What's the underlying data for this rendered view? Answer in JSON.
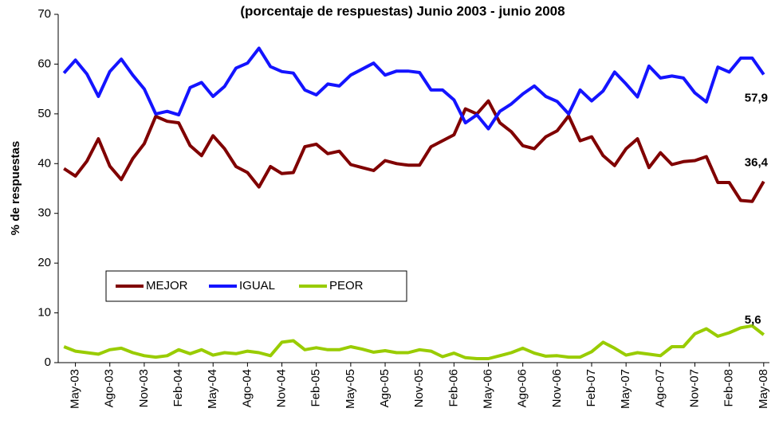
{
  "chart_data": {
    "type": "line",
    "title": "(porcentaje de respuestas)   Junio 2003 - junio 2008",
    "y_label": "% de respuestas",
    "categories": [
      null,
      "May-03",
      null,
      null,
      "Ago-03",
      null,
      null,
      "Nov-03",
      null,
      null,
      "Feb-04",
      null,
      null,
      "May-04",
      null,
      null,
      "Ago-04",
      null,
      null,
      "Nov-04",
      null,
      null,
      "Feb-05",
      null,
      null,
      "May-05",
      null,
      null,
      "Ago-05",
      null,
      null,
      "Nov-05",
      null,
      null,
      "Feb-06",
      null,
      null,
      "May-06",
      null,
      null,
      "Ago-06",
      null,
      null,
      "Nov-06",
      null,
      null,
      "Feb-07",
      null,
      null,
      "May-07",
      null,
      null,
      "Ago-07",
      null,
      null,
      "Nov-07",
      null,
      null,
      "Feb-08",
      null,
      null,
      "May-08"
    ],
    "series": [
      {
        "name": "MEJOR",
        "color": "#800000",
        "end_label": "36,4",
        "values": [
          39,
          37.5,
          40.5,
          45,
          39.5,
          36.8,
          41,
          44,
          49.5,
          48.5,
          48.2,
          43.6,
          41.6,
          45.6,
          43,
          39.4,
          38.2,
          35.3,
          39.4,
          38,
          38.2,
          43.4,
          43.9,
          42,
          42.5,
          39.8,
          39.2,
          38.6,
          40.6,
          40,
          39.7,
          39.7,
          43.4,
          44.6,
          45.8,
          51,
          50,
          52.6,
          48.2,
          46.4,
          43.6,
          43,
          45.4,
          46.6,
          49.6,
          44.6,
          45.4,
          41.6,
          39.6,
          43,
          45,
          39.2,
          42.2,
          39.8,
          40.4,
          40.6,
          41.4,
          36.2,
          36.2,
          32.6,
          32.4,
          36.4
        ]
      },
      {
        "name": "IGUAL",
        "color": "#1414ff",
        "end_label": "57,9",
        "values": [
          58.2,
          60.8,
          58,
          53.5,
          58.5,
          61,
          57.8,
          55,
          50,
          50.5,
          49.8,
          55.3,
          56.3,
          53.5,
          55.5,
          59.2,
          60.2,
          63.2,
          59.5,
          58.5,
          58.2,
          54.8,
          53.8,
          56,
          55.6,
          57.8,
          59,
          60.2,
          57.8,
          58.6,
          58.6,
          58.3,
          54.8,
          54.8,
          52.8,
          48.2,
          49.8,
          47,
          50.5,
          52,
          54,
          55.6,
          53.5,
          52.5,
          50,
          54.8,
          52.6,
          54.6,
          58.4,
          56,
          53.4,
          59.6,
          57.2,
          57.6,
          57.2,
          54.2,
          52.4,
          59.4,
          58.4,
          61.2,
          61.2,
          57.9
        ]
      },
      {
        "name": "PEOR",
        "color": "#99cc00",
        "end_label": "5,6",
        "values": [
          3.2,
          2.3,
          2,
          1.7,
          2.6,
          2.9,
          2,
          1.4,
          1.1,
          1.4,
          2.6,
          1.8,
          2.6,
          1.5,
          2,
          1.8,
          2.3,
          2,
          1.4,
          4.1,
          4.4,
          2.6,
          3,
          2.6,
          2.6,
          3.2,
          2.7,
          2.1,
          2.4,
          2,
          2,
          2.6,
          2.3,
          1.2,
          1.9,
          1,
          0.8,
          0.8,
          1.4,
          2,
          2.9,
          1.9,
          1.3,
          1.4,
          1.1,
          1.1,
          2.2,
          4.1,
          2.9,
          1.5,
          2,
          1.7,
          1.4,
          3.2,
          3.2,
          5.8,
          6.8,
          5.3,
          6,
          7,
          7.4,
          5.6
        ]
      }
    ],
    "ylim": [
      0,
      70
    ],
    "yticks": [
      0,
      10,
      20,
      30,
      40,
      50,
      60,
      70
    ],
    "grid": false,
    "legend": "lower-left"
  }
}
